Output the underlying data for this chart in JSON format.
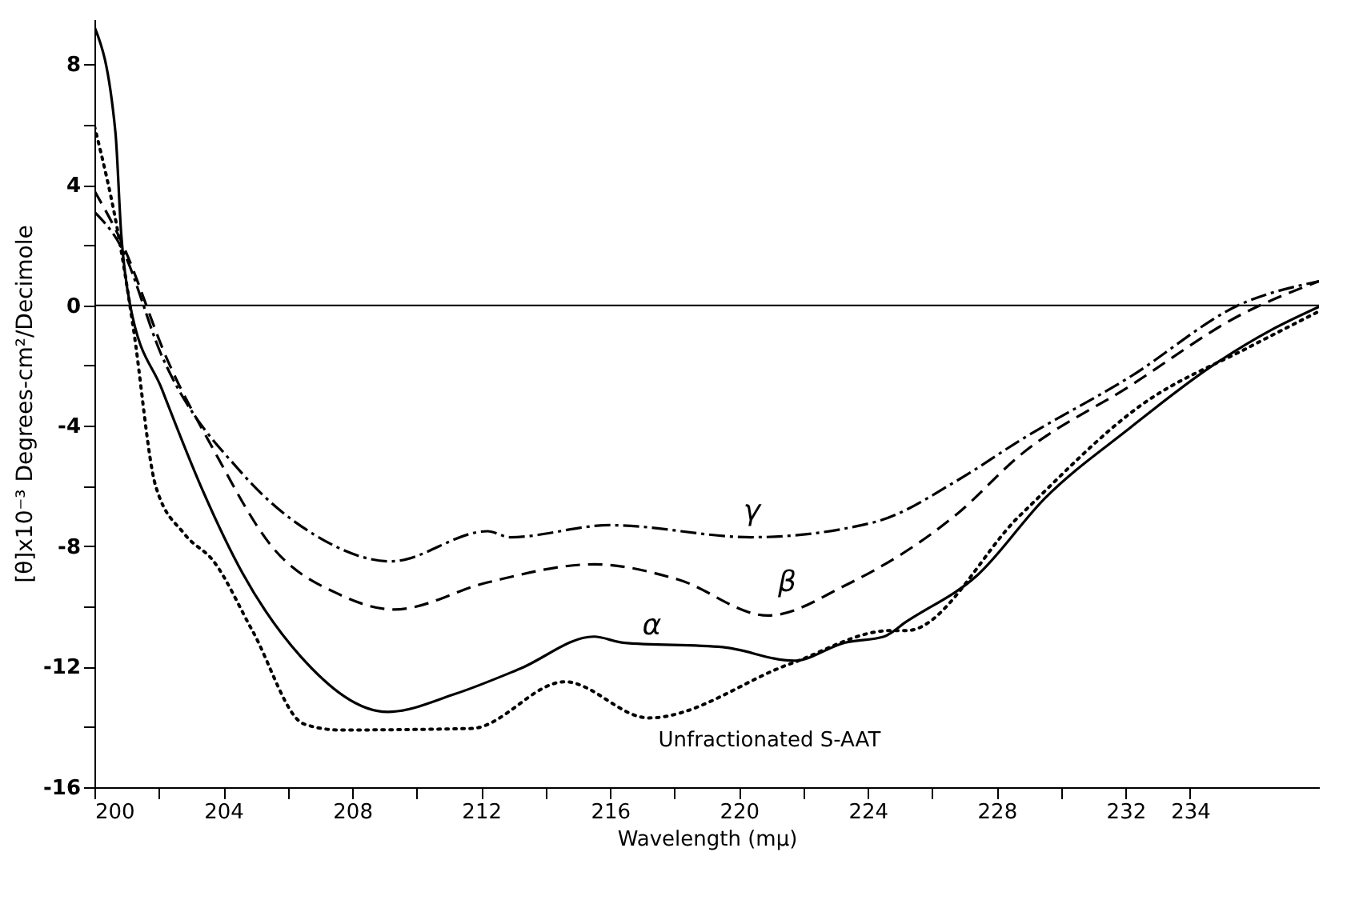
{
  "chart_data": {
    "type": "line",
    "xlabel": "Wavelength (mμ)",
    "ylabel": "[θ]x10⁻³ Degrees-cm²/Decimole",
    "xlim": [
      200,
      238
    ],
    "ylim": [
      -16,
      9.5
    ],
    "xticks": [
      200,
      {
        "value": 202,
        "label": null
      },
      204,
      {
        "value": 206,
        "label": null
      },
      208,
      {
        "value": 210,
        "label": null
      },
      212,
      {
        "value": 214,
        "label": null
      },
      216,
      {
        "value": 218,
        "label": null
      },
      220,
      {
        "value": 222,
        "label": null
      },
      224,
      {
        "value": 226,
        "label": null
      },
      228,
      {
        "value": 230,
        "label": null
      },
      232,
      {
        "value": 234,
        "label": "234"
      }
    ],
    "yticks": [
      8,
      {
        "value": 6,
        "label": null
      },
      4,
      {
        "value": 2,
        "label": null
      },
      0,
      {
        "value": -2,
        "label": null
      },
      -4,
      {
        "value": -6,
        "label": null
      },
      -8,
      {
        "value": -10,
        "label": null
      },
      -12,
      {
        "value": -14,
        "label": null
      },
      -16
    ],
    "grid": false,
    "marker": "none",
    "ref_lines": [
      {
        "axis": "y",
        "value": 0,
        "label": null,
        "color": "#000000"
      }
    ],
    "series": [
      {
        "name": "γ",
        "color": "#000000",
        "line_style": "dashdot",
        "x": [
          200,
          200.8,
          202.1,
          204.6,
          206.8,
          209.2,
          212.2,
          212.9,
          216,
          220.4,
          224.2,
          226.8,
          228.7,
          232.1,
          235.6,
          238
        ],
        "values": [
          3.1,
          2.0,
          -1.7,
          -5.6,
          -7.6,
          -8.5,
          -7.5,
          -7.7,
          -7.3,
          -7.7,
          -7.2,
          -5.8,
          -4.5,
          -2.4,
          0.05,
          0.8
        ]
      },
      {
        "name": "β",
        "color": "#000000",
        "line_style": "dashed",
        "x": [
          200,
          200.8,
          202.3,
          203.7,
          205.5,
          207.6,
          209.3,
          212.2,
          215.5,
          218.1,
          220.9,
          223.3,
          226.8,
          228.7,
          232.1,
          235.6,
          238
        ],
        "values": [
          3.8,
          2.2,
          -1.9,
          -4.8,
          -8.0,
          -9.6,
          -10.1,
          -9.2,
          -8.6,
          -9.1,
          -10.3,
          -9.3,
          -6.9,
          -5.0,
          -2.7,
          -0.3,
          0.8
        ]
      },
      {
        "name": "α",
        "color": "#000000",
        "line_style": "solid",
        "x": [
          200,
          200.65,
          200.83,
          201.1,
          202.1,
          203.3,
          204.6,
          206.4,
          209.1,
          211.2,
          213.2,
          215.5,
          216.4,
          219.5,
          221.7,
          223.3,
          224.5,
          225.2,
          227.4,
          229.5,
          232.1,
          234.7,
          236.5,
          238
        ],
        "values": [
          9.25,
          5.76,
          2.38,
          0.05,
          -2.8,
          -6.0,
          -8.9,
          -11.66,
          -13.5,
          -12.9,
          -12.07,
          -11.0,
          -11.2,
          -11.35,
          -11.8,
          -11.2,
          -11.0,
          -10.5,
          -8.96,
          -6.4,
          -4.1,
          -2.0,
          -0.83,
          -0.05
        ]
      },
      {
        "name": "Unfractionated S-AAT",
        "color": "#000000",
        "line_style": "dotted",
        "x": [
          200,
          200.8,
          201.2,
          201.9,
          202.8,
          203.7,
          204.9,
          206.5,
          207.6,
          211.7,
          214.6,
          217.2,
          221.6,
          224.7,
          225.2,
          228.7,
          232.5,
          235.9,
          238
        ],
        "values": [
          5.95,
          2.0,
          -0.7,
          -6.0,
          -7.6,
          -8.5,
          -10.8,
          -13.9,
          -14.1,
          -14.05,
          -12.5,
          -13.7,
          -11.9,
          -10.8,
          -10.8,
          -7.0,
          -3.3,
          -1.35,
          -0.2
        ]
      }
    ]
  }
}
